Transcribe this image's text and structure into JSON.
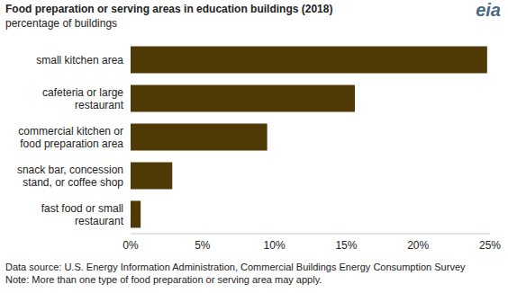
{
  "chart_data": {
    "type": "bar",
    "orientation": "horizontal",
    "title": "Food preparation or serving areas in education buildings (2018)",
    "subtitle": "percentage of buildings",
    "logo": "eia",
    "categories": [
      "small kitchen area",
      "cafeteria or large restaurant",
      "commercial kitchen or food preparation area",
      "snack bar, concession stand, or coffee shop",
      "fast food or small restaurant"
    ],
    "values": [
      24.8,
      15.6,
      9.5,
      2.9,
      0.7
    ],
    "color": "#4f3a06",
    "xlim": [
      0,
      25
    ],
    "xticks": [
      {
        "value": 0,
        "label": "0%"
      },
      {
        "value": 5,
        "label": "5%"
      },
      {
        "value": 10,
        "label": "10%"
      },
      {
        "value": 15,
        "label": "15%"
      },
      {
        "value": 20,
        "label": "20%"
      },
      {
        "value": 25,
        "label": "25%"
      }
    ],
    "grid": false,
    "annotations": [
      "Data source: U.S. Energy Information Administration, Commercial Buildings Energy Consumption Survey",
      "Note: More than one type of food preparation or serving area may apply."
    ]
  }
}
